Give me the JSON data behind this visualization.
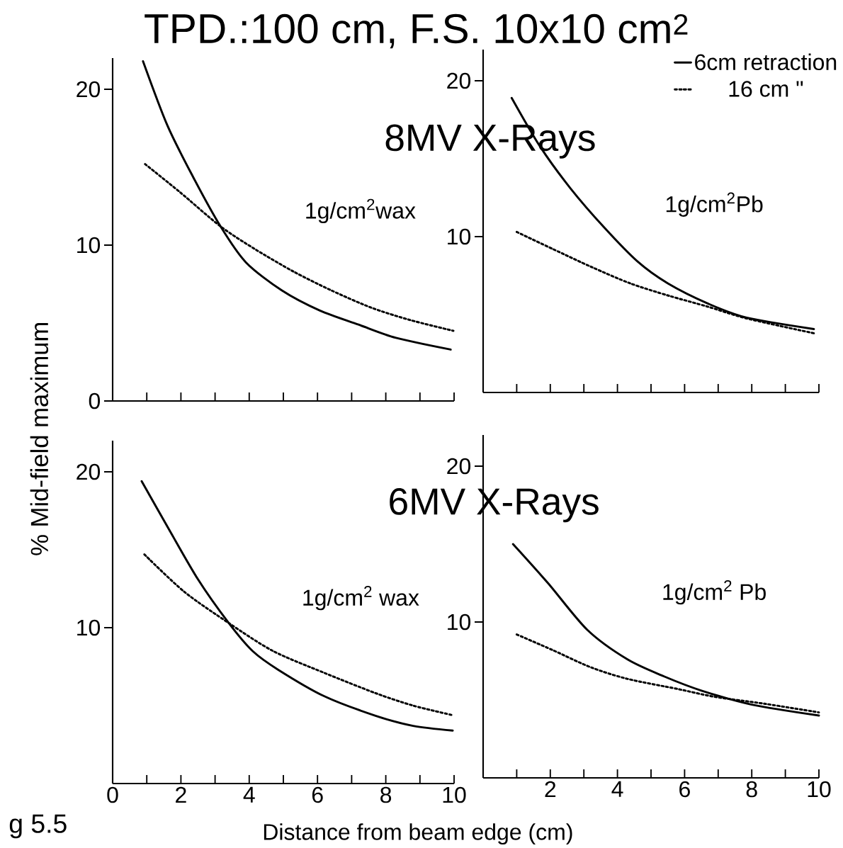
{
  "chart_data": [
    {
      "type": "line",
      "title": "TPD.:100 cm, F.S. 10x10 cm$^{2}$",
      "ylabel": "% Mid-field maximum",
      "annotations": [
        "1g/cm$^{2}$wax"
      ],
      "xlim": [
        0,
        10
      ],
      "ylim": [
        0,
        22
      ],
      "xticks": [
        {
          "value": 1,
          "label": null
        },
        {
          "value": 2,
          "label": null
        },
        {
          "value": 3,
          "label": null
        },
        {
          "value": 4,
          "label": null
        },
        {
          "value": 5,
          "label": null
        },
        {
          "value": 6,
          "label": null
        },
        {
          "value": 7,
          "label": null
        },
        {
          "value": 8,
          "label": null
        },
        {
          "value": 9,
          "label": null
        },
        {
          "value": 10,
          "label": null
        }
      ],
      "yticks": [
        0,
        10,
        20
      ],
      "tick_labels": "y",
      "series": [
        {
          "color": "#000000",
          "line_style": "solid",
          "x": [
            0.89,
            1.6,
            2.35,
            3.16,
            3.9,
            4.95,
            6.07,
            7.2,
            8.3,
            9.9
          ],
          "values": [
            21.8,
            17.7,
            14.4,
            11.2,
            8.9,
            7.1,
            5.8,
            4.9,
            4.05,
            3.3
          ]
        },
        {
          "color": "#000000",
          "line_style": "dotted",
          "x": [
            0.95,
            1.97,
            3.16,
            4.2,
            5.3,
            6.4,
            7.56,
            8.7,
            9.98
          ],
          "values": [
            15.2,
            13.4,
            11.2,
            9.7,
            8.3,
            7.1,
            6.0,
            5.2,
            4.5
          ]
        }
      ]
    },
    {
      "type": "line",
      "annotations": [
        "8MV X-Rays",
        "1g/cm$^{2}$Pb"
      ],
      "legend": "top right",
      "xlim": [
        0,
        10
      ],
      "ylim": [
        0,
        22
      ],
      "xticks": [
        {
          "value": 1,
          "label": null
        },
        {
          "value": 2,
          "label": null
        },
        {
          "value": 3,
          "label": null
        },
        {
          "value": 4,
          "label": null
        },
        {
          "value": 5,
          "label": null
        },
        {
          "value": 6,
          "label": null
        },
        {
          "value": 7,
          "label": null
        },
        {
          "value": 8,
          "label": null
        },
        {
          "value": 9,
          "label": null
        },
        {
          "value": 10,
          "label": null
        }
      ],
      "yticks": [
        10,
        20
      ],
      "tick_labels": "y",
      "series": [
        {
          "name": "6cm retraction",
          "color": "#000000",
          "line_style": "solid",
          "x": [
            0.85,
            1.69,
            2.6,
            3.6,
            4.6,
            5.5,
            6.7,
            7.85,
            9.85
          ],
          "values": [
            18.9,
            15.8,
            13.1,
            10.6,
            8.4,
            7.0,
            5.7,
            4.8,
            4.07
          ]
        },
        {
          "name": "16 cm \"",
          "color": "#000000",
          "line_style": "dotted",
          "x": [
            1.0,
            2.08,
            3.23,
            4.38,
            5.54,
            6.7,
            7.85,
            9.85
          ],
          "values": [
            10.3,
            9.2,
            8.05,
            7.0,
            6.2,
            5.5,
            4.75,
            3.8
          ]
        }
      ]
    },
    {
      "type": "line",
      "xlabel": "Distance from beam edge (cm)",
      "annotations": [
        "1g/cm$^{2}$ wax",
        "g 5.5"
      ],
      "xlim": [
        0,
        10
      ],
      "ylim": [
        0,
        22
      ],
      "xticks": [
        0,
        {
          "value": 1,
          "label": null
        },
        2,
        {
          "value": 3,
          "label": null
        },
        4,
        {
          "value": 5,
          "label": null
        },
        6,
        {
          "value": 7,
          "label": null
        },
        8,
        {
          "value": 9,
          "label": null
        },
        10
      ],
      "yticks": [
        10,
        20
      ],
      "series": [
        {
          "color": "#000000",
          "line_style": "solid",
          "x": [
            0.85,
            1.6,
            2.5,
            3.4,
            4.1,
            4.85,
            6.2,
            7.7,
            8.8,
            9.96
          ],
          "values": [
            19.4,
            16.5,
            13.1,
            10.3,
            8.5,
            7.3,
            5.6,
            4.35,
            3.7,
            3.4
          ]
        },
        {
          "color": "#000000",
          "line_style": "dotted",
          "x": [
            0.93,
            2.1,
            3.4,
            4.7,
            6.2,
            7.7,
            8.8,
            9.93
          ],
          "values": [
            14.7,
            12.3,
            10.3,
            8.5,
            7.1,
            5.8,
            5.0,
            4.4
          ]
        }
      ]
    },
    {
      "type": "line",
      "annotations": [
        "6MV X-Rays",
        "1g/cm$^{2}$ Pb"
      ],
      "xlim": [
        0,
        10
      ],
      "ylim": [
        0,
        22
      ],
      "xticks": [
        {
          "value": 1,
          "label": null
        },
        2,
        {
          "value": 3,
          "label": null
        },
        4,
        {
          "value": 5,
          "label": null
        },
        6,
        {
          "value": 7,
          "label": null
        },
        8,
        {
          "value": 9,
          "label": null
        },
        10
      ],
      "yticks": [
        10,
        20
      ],
      "series": [
        {
          "color": "#000000",
          "line_style": "solid",
          "x": [
            0.89,
            1.93,
            3.1,
            4.3,
            5.4,
            6.5,
            8.0,
            10.0
          ],
          "values": [
            15.0,
            12.5,
            9.5,
            7.6,
            6.5,
            5.6,
            4.7,
            4.0
          ]
        },
        {
          "color": "#000000",
          "line_style": "dotted",
          "x": [
            1.0,
            2.07,
            3.2,
            4.3,
            5.8,
            6.9,
            8.4,
            10.0
          ],
          "values": [
            9.2,
            8.2,
            7.1,
            6.35,
            5.7,
            5.2,
            4.75,
            4.2
          ]
        }
      ]
    }
  ]
}
